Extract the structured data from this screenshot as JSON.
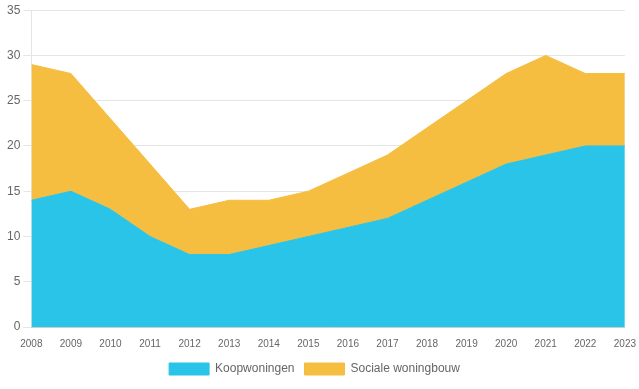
{
  "chart_data": {
    "type": "area",
    "x": [
      2008,
      2009,
      2010,
      2011,
      2012,
      2013,
      2014,
      2015,
      2016,
      2017,
      2018,
      2019,
      2020,
      2021,
      2022,
      2023
    ],
    "series": [
      {
        "name": "Koopwoningen",
        "color": "#29C4E8",
        "values": [
          14,
          15,
          13,
          10,
          8,
          8,
          9,
          10,
          11,
          12,
          14,
          16,
          18,
          19,
          20,
          20
        ]
      },
      {
        "name": "Sociale woningbouw",
        "color": "#F5BE41",
        "values": [
          15,
          13,
          10,
          8,
          5,
          6,
          5,
          5,
          6,
          7,
          8,
          9,
          10,
          11,
          8,
          8
        ]
      }
    ],
    "stacked": true,
    "xlim": [
      2008,
      2023
    ],
    "xticks": [
      2008,
      2009,
      2010,
      2011,
      2012,
      2013,
      2014,
      2015,
      2016,
      2017,
      2018,
      2019,
      2020,
      2021,
      2022,
      2023
    ],
    "ylim": [
      0,
      35
    ],
    "yticks": [
      0,
      5,
      10,
      15,
      20,
      25,
      30,
      35
    ],
    "grid": true,
    "legend": "bottom"
  }
}
